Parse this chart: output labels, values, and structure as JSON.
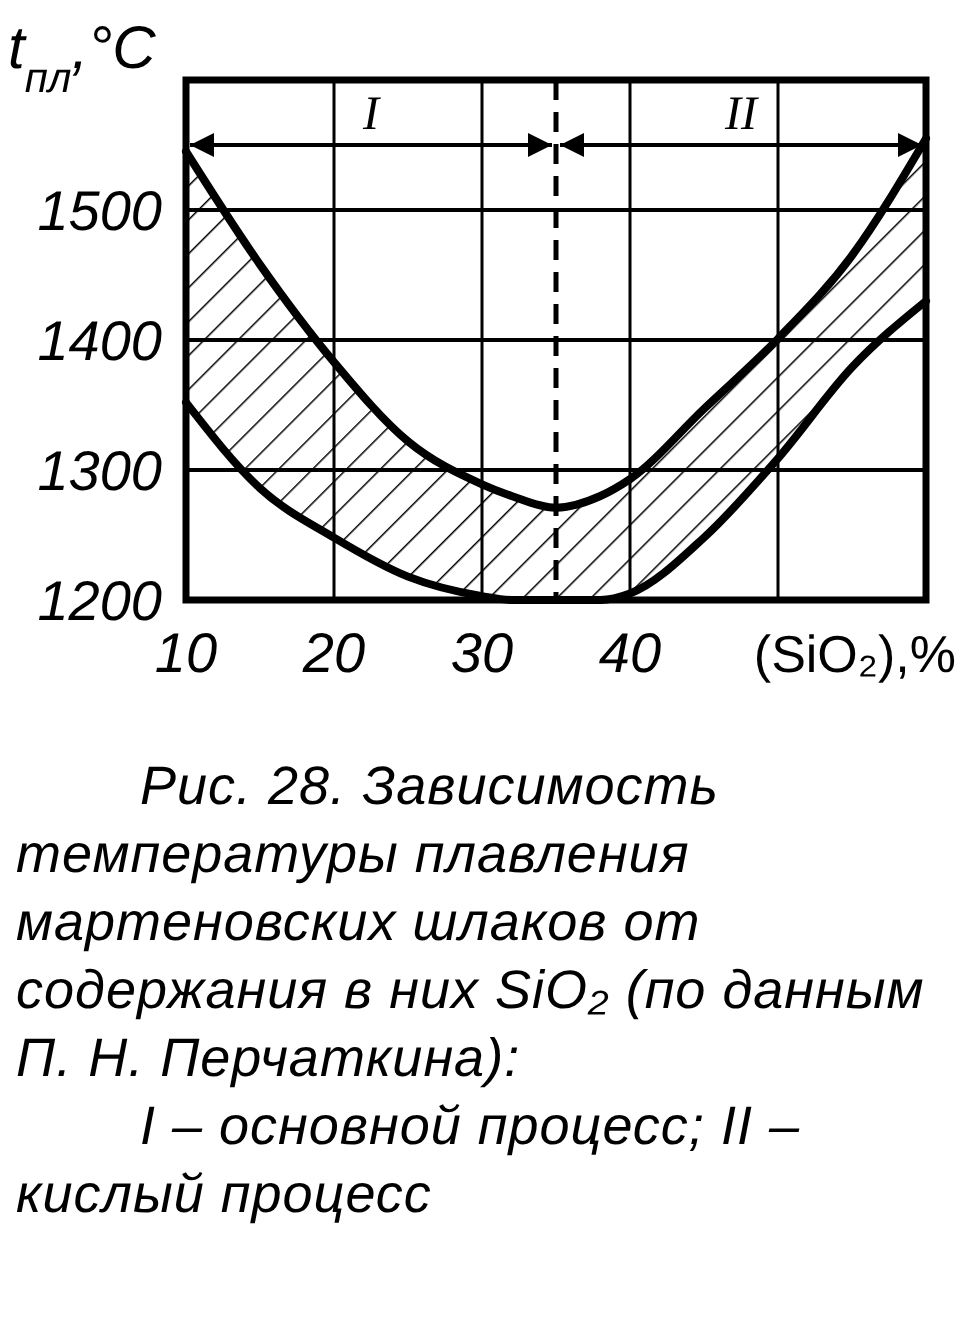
{
  "chart_data": {
    "type": "line",
    "xlabel": "(SiO₂),%",
    "ylabel": "t$_{пл}$,°C",
    "x": [
      10,
      15,
      20,
      25,
      30,
      32,
      35,
      38,
      40,
      45,
      50,
      55,
      60
    ],
    "series": [
      {
        "color": "#000000",
        "values": [
          1545,
          1458,
          1383,
          1322,
          1289,
          1280,
          1271,
          1280,
          1293,
          1347,
          1401,
          1465,
          1555
        ],
        "upper": [
          1545,
          1458,
          1383,
          1322,
          1289,
          1280,
          1271,
          1280,
          1293,
          1347,
          1401,
          1465,
          1555
        ],
        "lower": [
          1352,
          1286,
          1248,
          1218,
          1203,
          1200,
          1200,
          1200,
          1205,
          1248,
          1309,
          1379,
          1430
        ]
      },
      {
        "color": "#000000",
        "values": [
          1352,
          1286,
          1248,
          1218,
          1203,
          1200,
          1200,
          1200,
          1205,
          1248,
          1309,
          1379,
          1430
        ]
      }
    ],
    "xlim": [
      10,
      60
    ],
    "ylim": [
      1200,
      1600
    ],
    "xticks": [
      10,
      20,
      30,
      40,
      {
        "value": 50,
        "label": null
      }
    ],
    "yticks": [
      1200,
      1300,
      1400,
      1500
    ],
    "grid": true,
    "line_style": "solid",
    "ref_lines": [
      {
        "axis": "x",
        "value": 35,
        "line_style": "dashed"
      }
    ],
    "annotations": [
      "I",
      "II",
      "Рис. 28. Зависимость температуры плавления мартеновских шлаков от содержания в них SiO₂ (по данным П. Н. Перчаткина):",
      "I – основной процесс; II – кислый процесс"
    ]
  }
}
